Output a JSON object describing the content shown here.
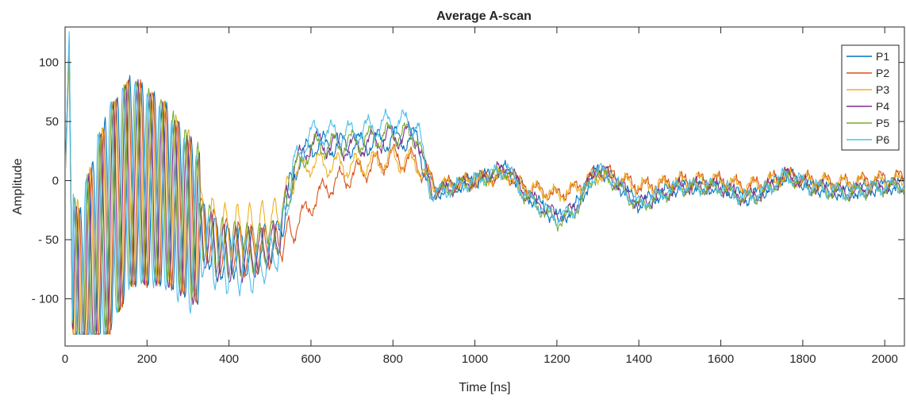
{
  "chart_data": {
    "type": "line",
    "title": "Average A-scan",
    "xlabel": "Time [ns]",
    "ylabel": "Amplitude",
    "xlim": [
      0,
      2048
    ],
    "ylim": [
      -140,
      130
    ],
    "xticks": [
      0,
      200,
      400,
      600,
      800,
      1000,
      1200,
      1400,
      1600,
      1800,
      2000
    ],
    "yticks": [
      100,
      50,
      0,
      -50,
      -100
    ],
    "xtick_labels": [
      "0",
      "200",
      "400",
      "600",
      "800",
      "1000",
      "1200",
      "1400",
      "1600",
      "1800",
      "2000"
    ],
    "ytick_labels": [
      "100",
      "50",
      "0",
      "- 50",
      "- 100"
    ],
    "grid": false,
    "legend_position": "top-right",
    "series": [
      {
        "name": "P1",
        "color": "#0072BD",
        "phase": 0.0,
        "anchors": [
          [
            0,
            0
          ],
          [
            10,
            120
          ],
          [
            18,
            -120
          ],
          [
            40,
            -125
          ],
          [
            60,
            -90
          ],
          [
            100,
            -40
          ],
          [
            160,
            0
          ],
          [
            240,
            -10
          ],
          [
            300,
            -30
          ],
          [
            380,
            -60
          ],
          [
            460,
            -60
          ],
          [
            520,
            -50
          ],
          [
            560,
            10
          ],
          [
            600,
            30
          ],
          [
            700,
            30
          ],
          [
            800,
            35
          ],
          [
            860,
            35
          ],
          [
            880,
            5
          ],
          [
            900,
            -10
          ],
          [
            1000,
            0
          ],
          [
            1080,
            10
          ],
          [
            1120,
            -10
          ],
          [
            1200,
            -32
          ],
          [
            1240,
            -25
          ],
          [
            1300,
            10
          ],
          [
            1340,
            0
          ],
          [
            1400,
            -20
          ],
          [
            1460,
            -10
          ],
          [
            1500,
            -5
          ],
          [
            1600,
            -5
          ],
          [
            1660,
            -15
          ],
          [
            1700,
            -10
          ],
          [
            1760,
            5
          ],
          [
            1820,
            -5
          ],
          [
            1900,
            -10
          ],
          [
            2000,
            -5
          ],
          [
            2048,
            -3
          ]
        ]
      },
      {
        "name": "P2",
        "color": "#D95319",
        "phase": 0.7,
        "anchors": [
          [
            0,
            0
          ],
          [
            10,
            110
          ],
          [
            18,
            -125
          ],
          [
            40,
            -125
          ],
          [
            60,
            -95
          ],
          [
            100,
            -45
          ],
          [
            160,
            0
          ],
          [
            240,
            -10
          ],
          [
            300,
            -30
          ],
          [
            380,
            -55
          ],
          [
            460,
            -60
          ],
          [
            520,
            -55
          ],
          [
            560,
            -40
          ],
          [
            600,
            -20
          ],
          [
            640,
            -5
          ],
          [
            700,
            5
          ],
          [
            800,
            20
          ],
          [
            860,
            15
          ],
          [
            880,
            5
          ],
          [
            900,
            -5
          ],
          [
            1000,
            0
          ],
          [
            1080,
            5
          ],
          [
            1120,
            -5
          ],
          [
            1200,
            -12
          ],
          [
            1240,
            -8
          ],
          [
            1300,
            8
          ],
          [
            1340,
            5
          ],
          [
            1400,
            -5
          ],
          [
            1460,
            -3
          ],
          [
            1500,
            0
          ],
          [
            1600,
            0
          ],
          [
            1660,
            -5
          ],
          [
            1700,
            -2
          ],
          [
            1760,
            5
          ],
          [
            1820,
            0
          ],
          [
            1900,
            -2
          ],
          [
            2000,
            2
          ],
          [
            2048,
            3
          ]
        ]
      },
      {
        "name": "P3",
        "color": "#EDB120",
        "phase": 1.4,
        "anchors": [
          [
            0,
            0
          ],
          [
            10,
            100
          ],
          [
            18,
            -115
          ],
          [
            40,
            -120
          ],
          [
            60,
            -90
          ],
          [
            100,
            -40
          ],
          [
            160,
            0
          ],
          [
            240,
            -10
          ],
          [
            300,
            -25
          ],
          [
            380,
            -45
          ],
          [
            460,
            -40
          ],
          [
            520,
            -30
          ],
          [
            560,
            5
          ],
          [
            600,
            15
          ],
          [
            700,
            12
          ],
          [
            800,
            18
          ],
          [
            860,
            15
          ],
          [
            880,
            5
          ],
          [
            900,
            -5
          ],
          [
            1000,
            0
          ],
          [
            1080,
            5
          ],
          [
            1120,
            -5
          ],
          [
            1200,
            -12
          ],
          [
            1240,
            -8
          ],
          [
            1300,
            5
          ],
          [
            1340,
            2
          ],
          [
            1400,
            -5
          ],
          [
            1460,
            -3
          ],
          [
            1500,
            0
          ],
          [
            1600,
            0
          ],
          [
            1660,
            -5
          ],
          [
            1700,
            -2
          ],
          [
            1760,
            3
          ],
          [
            1820,
            0
          ],
          [
            1900,
            -2
          ],
          [
            2000,
            0
          ],
          [
            2048,
            0
          ]
        ]
      },
      {
        "name": "P4",
        "color": "#7E2F8E",
        "phase": 2.1,
        "anchors": [
          [
            0,
            0
          ],
          [
            10,
            115
          ],
          [
            18,
            -122
          ],
          [
            40,
            -128
          ],
          [
            60,
            -92
          ],
          [
            100,
            -42
          ],
          [
            160,
            0
          ],
          [
            240,
            -12
          ],
          [
            300,
            -32
          ],
          [
            380,
            -62
          ],
          [
            460,
            -62
          ],
          [
            520,
            -50
          ],
          [
            560,
            12
          ],
          [
            600,
            32
          ],
          [
            700,
            28
          ],
          [
            800,
            38
          ],
          [
            860,
            38
          ],
          [
            880,
            5
          ],
          [
            900,
            -10
          ],
          [
            1000,
            0
          ],
          [
            1080,
            12
          ],
          [
            1120,
            -10
          ],
          [
            1200,
            -30
          ],
          [
            1240,
            -25
          ],
          [
            1300,
            12
          ],
          [
            1340,
            0
          ],
          [
            1400,
            -20
          ],
          [
            1460,
            -12
          ],
          [
            1500,
            -5
          ],
          [
            1600,
            -5
          ],
          [
            1660,
            -15
          ],
          [
            1700,
            -10
          ],
          [
            1760,
            5
          ],
          [
            1820,
            -5
          ],
          [
            1900,
            -10
          ],
          [
            2000,
            -5
          ],
          [
            2048,
            -5
          ]
        ]
      },
      {
        "name": "P5",
        "color": "#77AC30",
        "phase": 2.8,
        "anchors": [
          [
            0,
            0
          ],
          [
            10,
            112
          ],
          [
            18,
            -118
          ],
          [
            40,
            -122
          ],
          [
            60,
            -88
          ],
          [
            100,
            -38
          ],
          [
            160,
            0
          ],
          [
            240,
            -8
          ],
          [
            300,
            -28
          ],
          [
            380,
            -58
          ],
          [
            460,
            -58
          ],
          [
            520,
            -48
          ],
          [
            560,
            8
          ],
          [
            600,
            28
          ],
          [
            700,
            32
          ],
          [
            800,
            40
          ],
          [
            860,
            38
          ],
          [
            880,
            5
          ],
          [
            900,
            -10
          ],
          [
            1000,
            0
          ],
          [
            1080,
            8
          ],
          [
            1120,
            -12
          ],
          [
            1200,
            -35
          ],
          [
            1240,
            -28
          ],
          [
            1300,
            8
          ],
          [
            1340,
            -2
          ],
          [
            1400,
            -22
          ],
          [
            1460,
            -12
          ],
          [
            1500,
            -6
          ],
          [
            1600,
            -6
          ],
          [
            1660,
            -16
          ],
          [
            1700,
            -12
          ],
          [
            1760,
            4
          ],
          [
            1820,
            -6
          ],
          [
            1900,
            -11
          ],
          [
            2000,
            -6
          ],
          [
            2048,
            -4
          ]
        ]
      },
      {
        "name": "P6",
        "color": "#4DBEEE",
        "phase": 3.5,
        "anchors": [
          [
            0,
            0
          ],
          [
            10,
            125
          ],
          [
            18,
            -118
          ],
          [
            40,
            -120
          ],
          [
            60,
            -85
          ],
          [
            100,
            -35
          ],
          [
            160,
            0
          ],
          [
            240,
            -15
          ],
          [
            300,
            -40
          ],
          [
            380,
            -70
          ],
          [
            460,
            -75
          ],
          [
            520,
            -60
          ],
          [
            560,
            15
          ],
          [
            600,
            40
          ],
          [
            700,
            40
          ],
          [
            800,
            50
          ],
          [
            860,
            48
          ],
          [
            880,
            5
          ],
          [
            900,
            -12
          ],
          [
            1000,
            0
          ],
          [
            1080,
            10
          ],
          [
            1120,
            -12
          ],
          [
            1200,
            -32
          ],
          [
            1240,
            -26
          ],
          [
            1300,
            10
          ],
          [
            1340,
            0
          ],
          [
            1400,
            -20
          ],
          [
            1460,
            -10
          ],
          [
            1500,
            -5
          ],
          [
            1600,
            -5
          ],
          [
            1660,
            -15
          ],
          [
            1700,
            -10
          ],
          [
            1760,
            5
          ],
          [
            1820,
            -5
          ],
          [
            1900,
            -10
          ],
          [
            2000,
            -5
          ],
          [
            2048,
            -3
          ]
        ]
      }
    ]
  }
}
